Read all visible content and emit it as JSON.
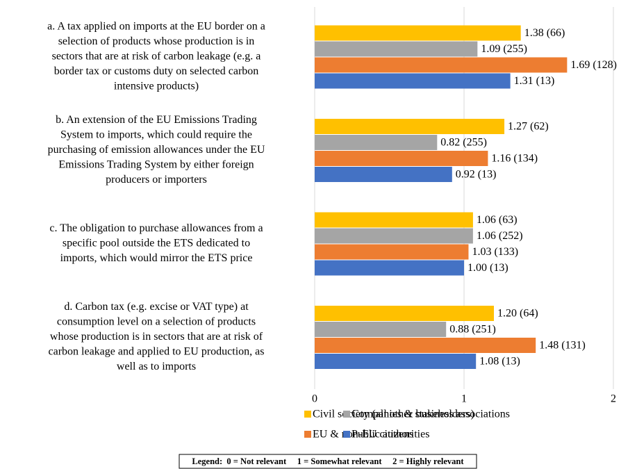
{
  "chart_data": {
    "type": "bar",
    "orientation": "horizontal",
    "categories": [
      [
        "a. A tax applied on imports at the EU border on a",
        "selection of products whose production is in",
        "sectors that are at risk of carbon leakage (e.g. a",
        "border tax or customs duty on selected carbon",
        "intensive products)"
      ],
      [
        "b. An extension of the EU Emissions Trading",
        "System to imports, which could require the",
        "purchasing of emission allowances under the EU",
        "Emissions Trading System by either foreign",
        "producers or importers"
      ],
      [
        "c. The obligation to purchase allowances from a",
        "specific pool outside the ETS dedicated to",
        "imports, which would mirror the ETS price"
      ],
      [
        "d. Carbon tax (e.g. excise or VAT type) at",
        "consumption level on a selection of products",
        "whose production is in sectors that are at risk of",
        "carbon leakage and applied to EU production, as",
        "well as to imports"
      ]
    ],
    "series": [
      {
        "name": "Civil society (all other stakeholders)",
        "color": "#FFC000",
        "values": [
          1.38,
          1.27,
          1.06,
          1.2
        ],
        "value_labels": [
          "1.38 (66)",
          "1.27 (62)",
          "1.06 (63)",
          "1.20 (64)"
        ]
      },
      {
        "name": "Companies & business associations",
        "color": "#A5A5A5",
        "values": [
          1.09,
          0.82,
          1.06,
          0.88
        ],
        "value_labels": [
          "1.09 (255)",
          "0.82 (255)",
          "1.06 (252)",
          "0.88 (251)"
        ]
      },
      {
        "name": "EU & non-EU citizens",
        "color": "#ED7D31",
        "values": [
          1.69,
          1.16,
          1.03,
          1.48
        ],
        "value_labels": [
          "1.69 (128)",
          "1.16 (134)",
          "1.03 (133)",
          "1.48 (131)"
        ]
      },
      {
        "name": "Public authorities",
        "color": "#4472C4",
        "values": [
          1.31,
          0.92,
          1.0,
          1.08
        ],
        "value_labels": [
          "1.31 (13)",
          "0.92 (13)",
          "1.00 (13)",
          "1.08 (13)"
        ]
      }
    ],
    "xlim": [
      0,
      2
    ],
    "xticks": [
      0,
      1,
      2
    ],
    "grid": true,
    "note": "Legend:  0 = Not relevant     1 = Somewhat relevant     2 = Highly relevant"
  }
}
